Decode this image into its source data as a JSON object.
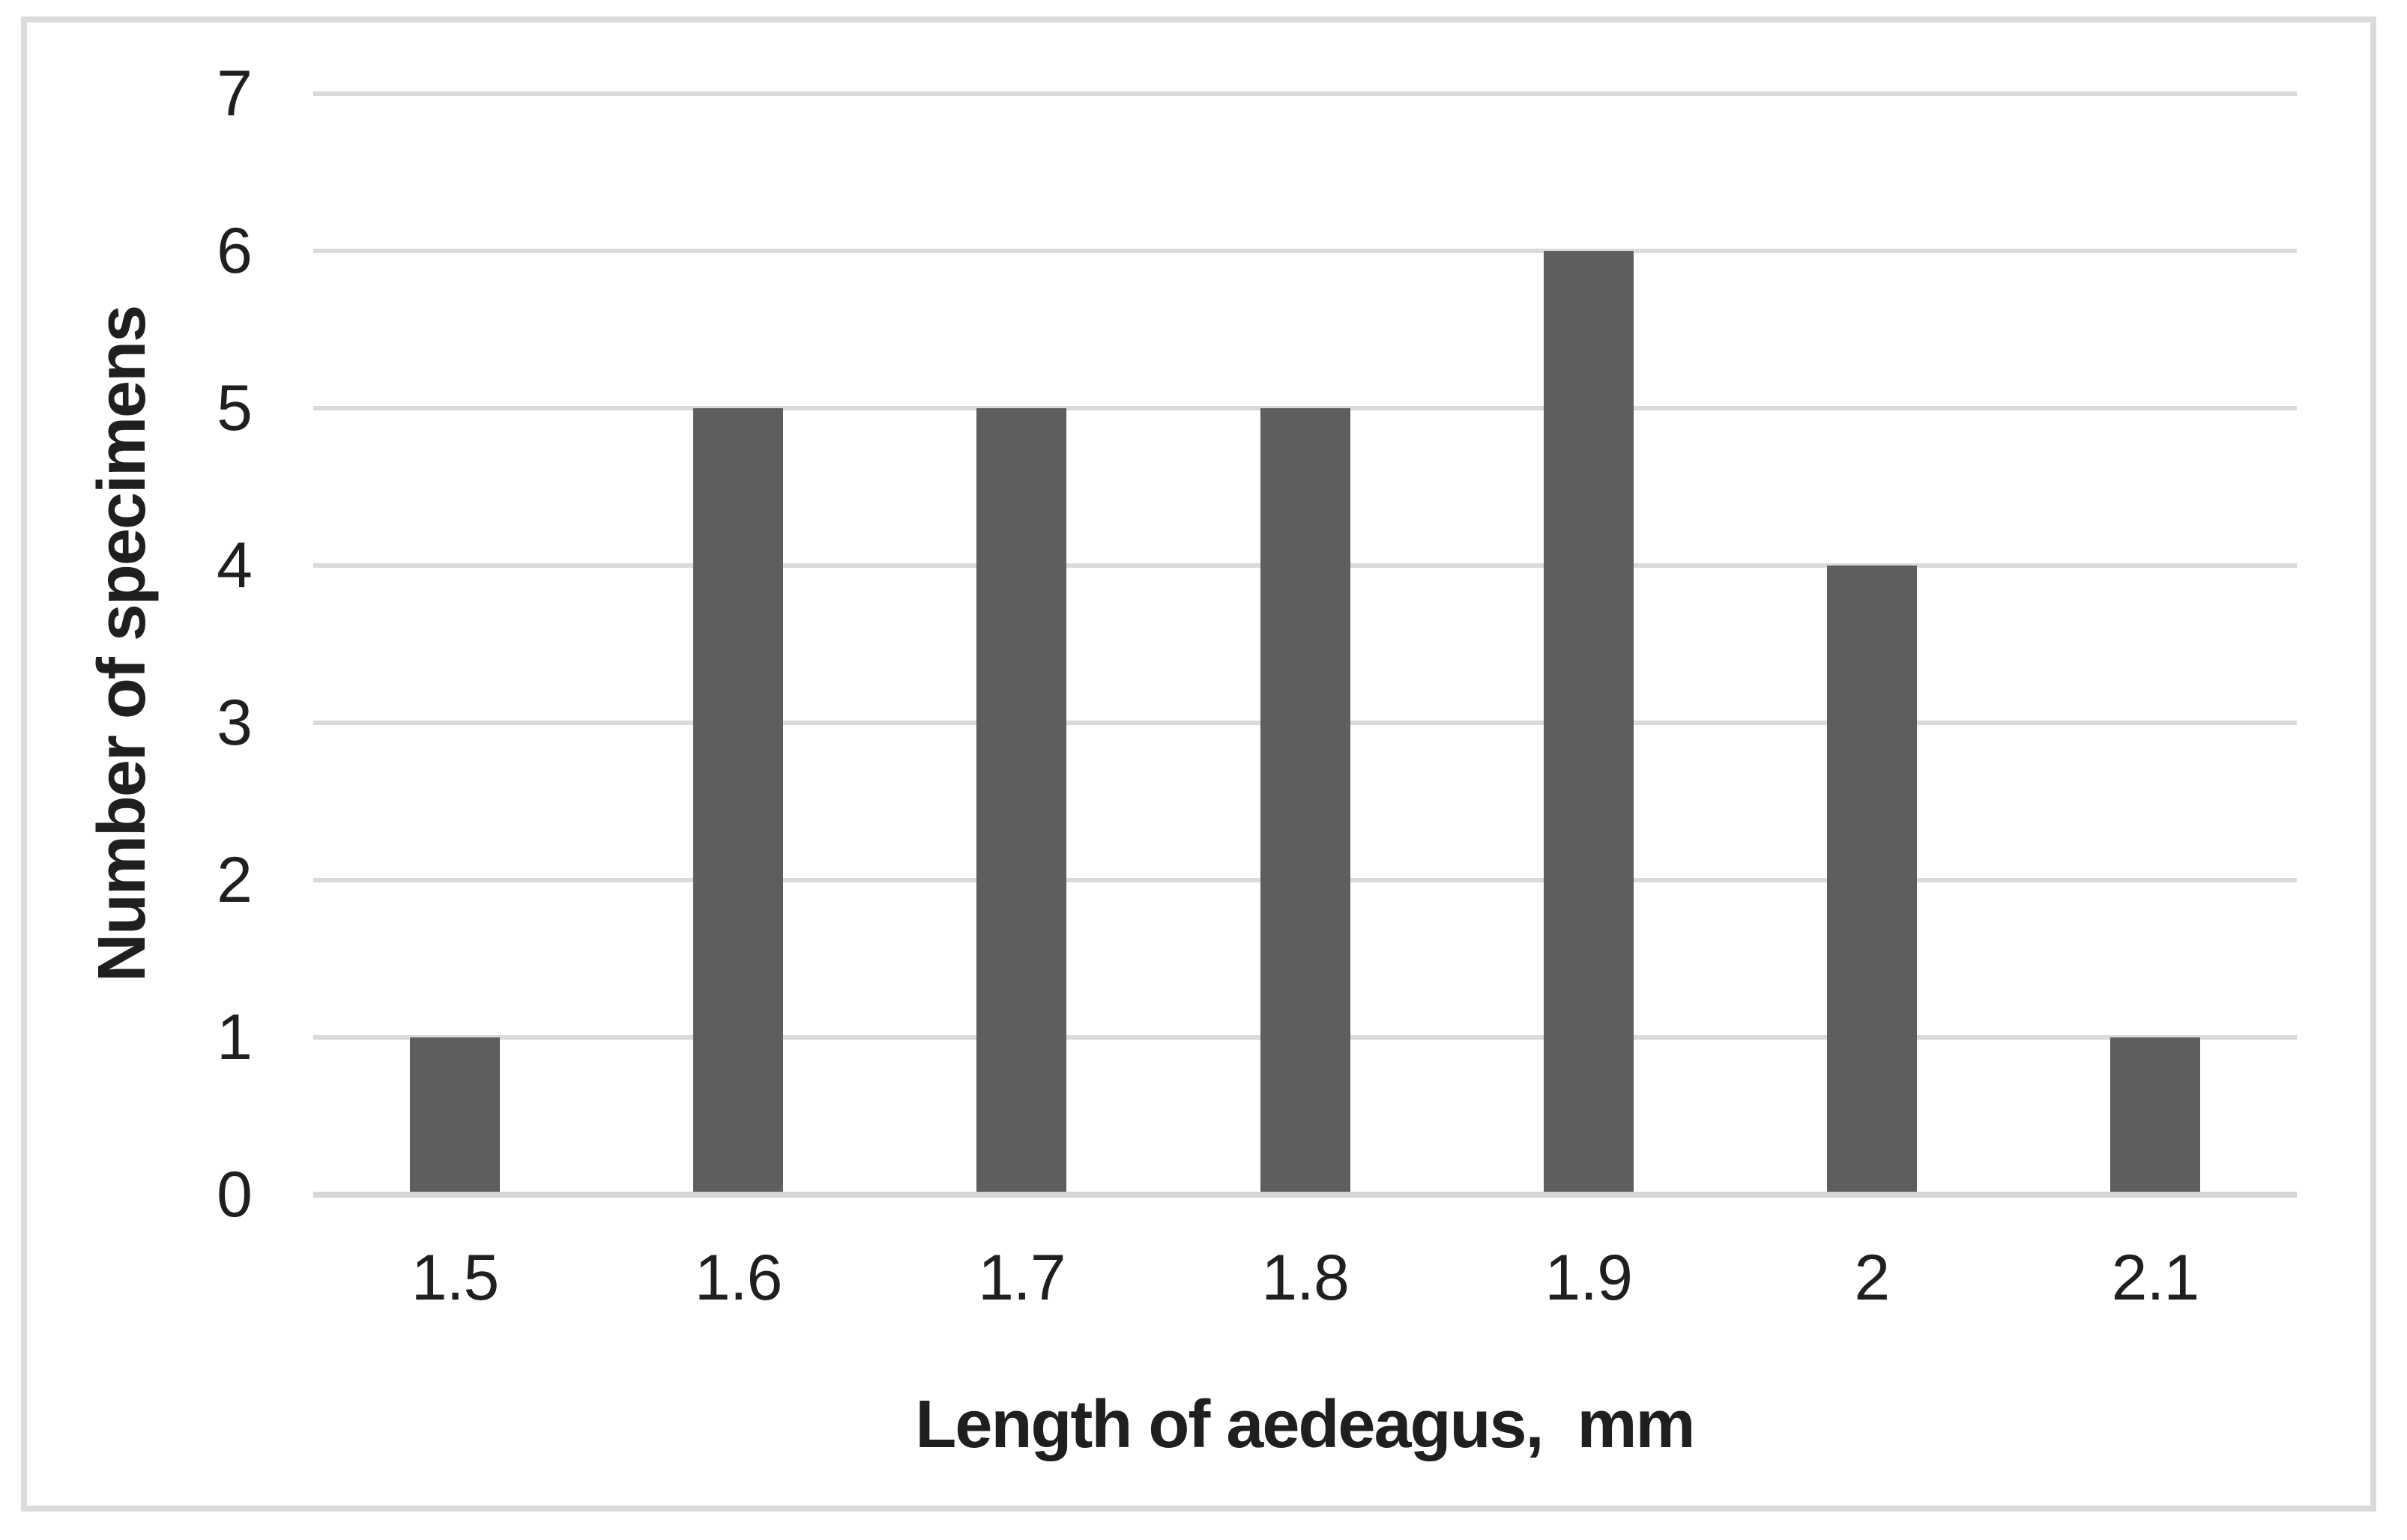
{
  "chart_data": {
    "type": "bar",
    "categories": [
      "1.5",
      "1.6",
      "1.7",
      "1.8",
      "1.9",
      "2",
      "2.1"
    ],
    "values": [
      1,
      5,
      5,
      5,
      6,
      4,
      1
    ],
    "xlabel": "Length of aedeagus,  mm",
    "ylabel": "Number of specimens",
    "yticks": [
      0,
      1,
      2,
      3,
      4,
      5,
      6,
      7
    ],
    "ylim": [
      0,
      7
    ],
    "grid": "horizontal",
    "legend": "none",
    "colors": {
      "bar": "#5E5E5E",
      "gridline": "#DADADA",
      "axis_line": "#D6D6D6",
      "text": "#1F1F1F",
      "frame_border": "#DBDBDB",
      "background": "#FFFFFF"
    }
  }
}
